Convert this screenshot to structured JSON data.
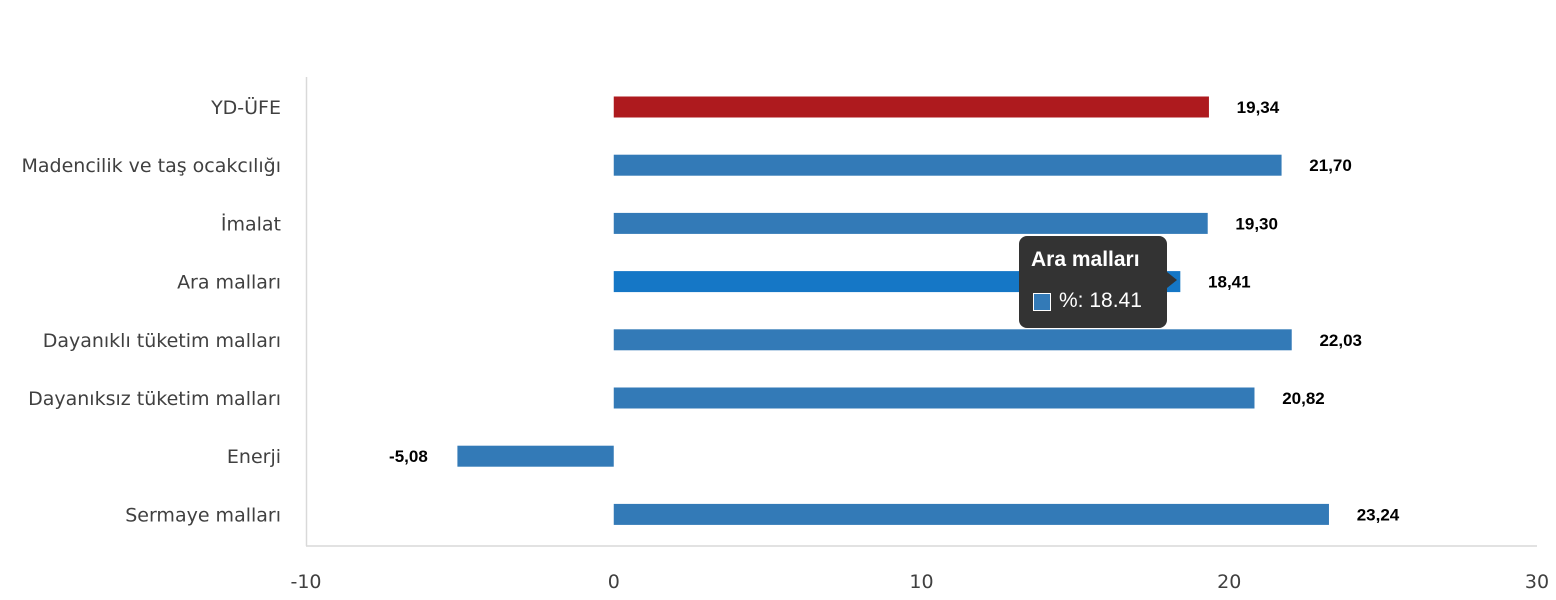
{
  "chart_data": {
    "type": "bar",
    "orientation": "horizontal",
    "categories": [
      "YD-ÜFE",
      "Madencilik ve taş ocakcılığı",
      "İmalat",
      "Ara malları",
      "Dayanıklı tüketim malları",
      "Dayanıksız tüketim malları",
      "Enerji",
      "Sermaye malları"
    ],
    "values": [
      19.34,
      21.7,
      19.3,
      18.41,
      22.03,
      20.82,
      -5.08,
      23.24
    ],
    "value_labels": [
      "19,34",
      "21,70",
      "19,30",
      "18,41",
      "22,03",
      "20,82",
      "-5,08",
      "23,24"
    ],
    "bar_colors": [
      "#ae1a1e",
      "#337ab7",
      "#337ab7",
      "#1577c6",
      "#337ab7",
      "#337ab7",
      "#337ab7",
      "#337ab7"
    ],
    "xlim": [
      -10,
      30
    ],
    "xticks": [
      "-10",
      "0",
      "10",
      "20",
      "30"
    ],
    "xtick_values": [
      -10,
      0,
      10,
      20,
      30
    ],
    "grid": false,
    "legend": "none"
  },
  "tooltip": {
    "title": "Ara malları",
    "value_text": "%: 18.41",
    "swatch_color": "#337ab7"
  }
}
